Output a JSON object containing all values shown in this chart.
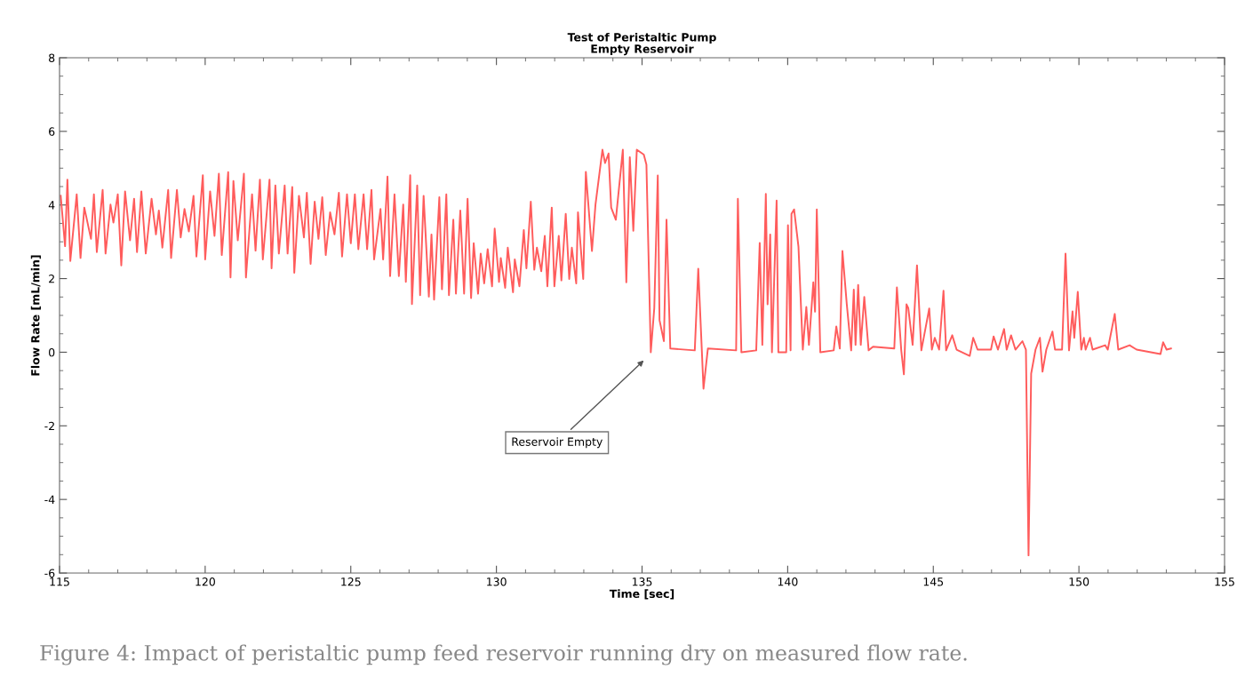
{
  "chart_data": {
    "type": "line",
    "title": "Test of Peristaltic Pump\nEmpty Reservoir",
    "xlabel": "Time [sec]",
    "ylabel": "Flow Rate [mL/min]",
    "xlim": [
      115,
      155
    ],
    "xticks": [
      115,
      120,
      125,
      130,
      135,
      140,
      145,
      150,
      155
    ],
    "ylim": [
      -6,
      8
    ],
    "yticks": [
      -6,
      -4,
      -2,
      0,
      2,
      4,
      6,
      8
    ],
    "grid": false,
    "line_style": "solid",
    "marker": "none",
    "annotations": [
      "Reservoir Empty",
      "Figure 4: Impact of peristaltic pump feed reservoir running dry on measured flow rate."
    ],
    "series": [
      {
        "color": "#ff5c5c",
        "x": [
          115.04,
          115.19,
          115.27,
          115.37,
          115.59,
          115.72,
          115.85,
          116.08,
          116.18,
          116.28,
          116.48,
          116.58,
          116.75,
          116.85,
          117.0,
          117.12,
          117.25,
          117.42,
          117.56,
          117.66,
          117.81,
          117.96,
          118.16,
          118.31,
          118.41,
          118.53,
          118.73,
          118.83,
          119.03,
          119.16,
          119.29,
          119.44,
          119.6,
          119.7,
          119.92,
          120.0,
          120.17,
          120.32,
          120.47,
          120.57,
          120.79,
          120.87,
          120.97,
          121.12,
          121.33,
          121.4,
          121.61,
          121.73,
          121.88,
          121.98,
          122.21,
          122.28,
          122.41,
          122.53,
          122.73,
          122.83,
          122.99,
          123.06,
          123.22,
          123.39,
          123.49,
          123.62,
          123.76,
          123.89,
          124.02,
          124.14,
          124.29,
          124.44,
          124.59,
          124.7,
          124.87,
          125.0,
          125.14,
          125.26,
          125.44,
          125.56,
          125.71,
          125.8,
          126.02,
          126.11,
          126.26,
          126.35,
          126.5,
          126.65,
          126.8,
          126.89,
          127.04,
          127.1,
          127.28,
          127.38,
          127.5,
          127.68,
          127.77,
          127.86,
          128.04,
          128.13,
          128.28,
          128.37,
          128.52,
          128.61,
          128.76,
          128.89,
          129.01,
          129.13,
          129.22,
          129.37,
          129.46,
          129.58,
          129.7,
          129.85,
          129.94,
          130.09,
          130.15,
          130.3,
          130.39,
          130.57,
          130.63,
          130.79,
          130.94,
          131.03,
          131.18,
          131.3,
          131.39,
          131.54,
          131.66,
          131.75,
          131.9,
          131.99,
          132.14,
          132.23,
          132.38,
          132.5,
          132.59,
          132.74,
          132.8,
          132.98,
          133.07,
          133.28,
          133.4,
          133.64,
          133.73,
          133.85,
          133.94,
          134.1,
          134.34,
          134.46,
          134.58,
          134.7,
          134.82,
          135.06,
          135.15,
          135.3,
          135.42,
          135.54,
          135.6,
          135.75,
          135.84,
          135.97,
          136.81,
          136.93,
          137.11,
          137.26,
          138.23,
          138.29,
          138.41,
          138.92,
          139.04,
          139.13,
          139.25,
          139.31,
          139.4,
          139.46,
          139.62,
          139.68,
          139.95,
          140.01,
          140.1,
          140.13,
          140.22,
          140.37,
          140.52,
          140.64,
          140.73,
          140.88,
          140.94,
          141.0,
          141.12,
          141.58,
          141.67,
          141.79,
          141.88,
          142.03,
          142.18,
          142.27,
          142.33,
          142.42,
          142.51,
          142.63,
          142.78,
          142.93,
          143.66,
          143.75,
          143.9,
          143.99,
          144.08,
          144.14,
          144.29,
          144.44,
          144.59,
          144.86,
          144.95,
          145.05,
          145.2,
          145.35,
          145.44,
          145.65,
          145.8,
          146.25,
          146.37,
          146.52,
          146.98,
          147.07,
          147.22,
          147.43,
          147.52,
          147.67,
          147.82,
          148.06,
          148.18,
          148.27,
          148.36,
          148.51,
          148.66,
          148.75,
          148.88,
          149.09,
          149.18,
          149.42,
          149.54,
          149.66,
          149.78,
          149.84,
          149.96,
          150.08,
          150.17,
          150.23,
          150.38,
          150.47,
          150.9,
          150.99,
          151.23,
          151.35,
          151.74,
          151.98,
          152.8,
          152.89,
          153.01,
          153.16
        ],
        "values": [
          4.25,
          2.88,
          4.69,
          2.48,
          4.29,
          2.56,
          3.93,
          3.08,
          4.29,
          2.72,
          4.41,
          2.68,
          4.01,
          3.52,
          4.29,
          2.36,
          4.37,
          3.04,
          4.17,
          2.72,
          4.37,
          2.68,
          4.17,
          3.2,
          3.85,
          2.84,
          4.41,
          2.56,
          4.41,
          3.12,
          3.89,
          3.28,
          4.25,
          2.6,
          4.81,
          2.52,
          4.37,
          3.16,
          4.85,
          2.64,
          4.89,
          2.03,
          4.65,
          3.04,
          4.85,
          2.03,
          4.29,
          2.76,
          4.69,
          2.52,
          4.69,
          2.28,
          4.53,
          2.68,
          4.53,
          2.68,
          4.49,
          2.16,
          4.25,
          3.12,
          4.33,
          2.4,
          4.09,
          3.08,
          4.21,
          2.64,
          3.8,
          3.2,
          4.33,
          2.6,
          4.29,
          2.96,
          4.29,
          2.8,
          4.29,
          2.8,
          4.41,
          2.52,
          3.89,
          2.52,
          4.77,
          2.07,
          4.29,
          2.07,
          4.01,
          1.91,
          4.81,
          1.31,
          4.53,
          1.55,
          4.25,
          1.51,
          3.2,
          1.43,
          4.21,
          1.71,
          4.29,
          1.55,
          3.6,
          1.59,
          3.85,
          1.59,
          4.17,
          1.47,
          2.96,
          1.59,
          2.68,
          1.87,
          2.8,
          1.79,
          3.36,
          1.91,
          2.56,
          1.75,
          2.84,
          1.63,
          2.52,
          1.79,
          3.32,
          2.28,
          4.09,
          2.24,
          2.84,
          2.2,
          3.16,
          1.79,
          3.93,
          1.79,
          3.16,
          1.95,
          3.76,
          1.99,
          2.84,
          1.87,
          3.8,
          1.99,
          4.9,
          2.75,
          4.0,
          5.5,
          5.14,
          5.4,
          3.93,
          3.6,
          5.5,
          1.9,
          5.3,
          3.3,
          5.5,
          5.37,
          5.1,
          0.0,
          1.2,
          4.8,
          0.87,
          0.3,
          3.6,
          0.1,
          0.05,
          2.27,
          -0.99,
          0.1,
          0.05,
          4.17,
          0.0,
          0.05,
          2.97,
          0.2,
          4.3,
          1.3,
          3.2,
          0.0,
          4.12,
          0.0,
          0.0,
          3.45,
          0.05,
          3.76,
          3.88,
          2.87,
          0.07,
          1.23,
          0.2,
          1.9,
          1.1,
          3.88,
          0.0,
          0.05,
          0.7,
          0.1,
          2.75,
          1.3,
          0.05,
          1.7,
          0.2,
          1.83,
          0.2,
          1.5,
          0.05,
          0.15,
          0.1,
          1.76,
          0.05,
          -0.6,
          1.3,
          1.2,
          0.2,
          2.36,
          0.05,
          1.19,
          0.07,
          0.39,
          0.07,
          1.67,
          0.05,
          0.46,
          0.07,
          -0.1,
          0.39,
          0.07,
          0.07,
          0.43,
          0.07,
          0.63,
          0.07,
          0.46,
          0.07,
          0.3,
          0.07,
          -5.52,
          -0.58,
          0.07,
          0.39,
          -0.53,
          0.07,
          0.56,
          0.07,
          0.07,
          2.68,
          0.05,
          1.11,
          0.39,
          1.64,
          0.07,
          0.39,
          0.07,
          0.39,
          0.07,
          0.19,
          0.07,
          1.04,
          0.07,
          0.19,
          0.07,
          -0.05,
          0.27,
          0.07,
          0.1
        ]
      }
    ]
  }
}
